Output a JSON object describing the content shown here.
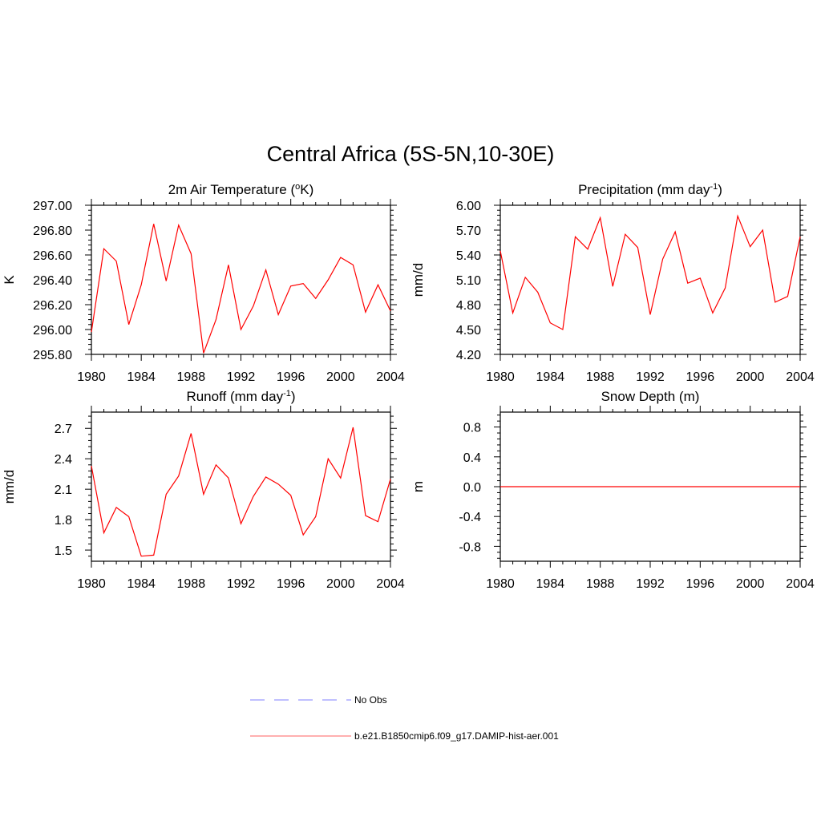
{
  "title": "Central Africa (5S-5N,10-30E)",
  "chart_data": [
    {
      "type": "line",
      "title": "2m Air Temperature (",
      "title_sup": "o",
      "title_tail": "K)",
      "ylabel": "K",
      "x": [
        1980,
        1981,
        1982,
        1983,
        1984,
        1985,
        1986,
        1987,
        1988,
        1989,
        1990,
        1991,
        1992,
        1993,
        1994,
        1995,
        1996,
        1997,
        1998,
        1999,
        2000,
        2001,
        2002,
        2003,
        2004
      ],
      "xticks": [
        1980,
        1984,
        1988,
        1992,
        1996,
        2000,
        2004
      ],
      "xlim": [
        1980,
        2004
      ],
      "ylim": [
        295.8,
        297.0
      ],
      "yticks": [
        295.8,
        296.0,
        296.2,
        296.4,
        296.6,
        296.8,
        297.0
      ],
      "ytick_labels": [
        "295.80",
        "296.00",
        "296.20",
        "296.40",
        "296.60",
        "296.80",
        "297.00"
      ],
      "yminor": 0.04,
      "series": [
        {
          "color": "#ff0000",
          "values": [
            295.98,
            296.65,
            296.55,
            296.04,
            296.36,
            296.85,
            296.39,
            296.84,
            296.61,
            295.81,
            296.08,
            296.52,
            296.0,
            296.19,
            296.48,
            296.12,
            296.35,
            296.37,
            296.25,
            296.4,
            296.58,
            296.52,
            296.14,
            296.36,
            296.15
          ]
        }
      ]
    },
    {
      "type": "line",
      "title": "Precipitation (mm day",
      "title_sup": "-1",
      "title_tail": ")",
      "ylabel": "mm/d",
      "x": [
        1980,
        1981,
        1982,
        1983,
        1984,
        1985,
        1986,
        1987,
        1988,
        1989,
        1990,
        1991,
        1992,
        1993,
        1994,
        1995,
        1996,
        1997,
        1998,
        1999,
        2000,
        2001,
        2002,
        2003,
        2004
      ],
      "xticks": [
        1980,
        1984,
        1988,
        1992,
        1996,
        2000,
        2004
      ],
      "xlim": [
        1980,
        2004
      ],
      "ylim": [
        4.2,
        6.0
      ],
      "yticks": [
        4.2,
        4.5,
        4.8,
        5.1,
        5.4,
        5.7,
        6.0
      ],
      "ytick_labels": [
        "4.20",
        "4.50",
        "4.80",
        "5.10",
        "5.40",
        "5.70",
        "6.00"
      ],
      "yminor": 0.06,
      "series": [
        {
          "color": "#ff0000",
          "values": [
            5.45,
            4.7,
            5.13,
            4.95,
            4.58,
            4.5,
            5.62,
            5.47,
            5.85,
            5.02,
            5.65,
            5.49,
            4.68,
            5.35,
            5.68,
            5.06,
            5.12,
            4.7,
            5.0,
            5.87,
            5.5,
            5.7,
            4.83,
            4.9,
            5.62
          ]
        }
      ]
    },
    {
      "type": "line",
      "title": "Runoff (mm day",
      "title_sup": "-1",
      "title_tail": ")",
      "ylabel": "mm/d",
      "x": [
        1980,
        1981,
        1982,
        1983,
        1984,
        1985,
        1986,
        1987,
        1988,
        1989,
        1990,
        1991,
        1992,
        1993,
        1994,
        1995,
        1996,
        1997,
        1998,
        1999,
        2000,
        2001,
        2002,
        2003,
        2004
      ],
      "xticks": [
        1980,
        1984,
        1988,
        1992,
        1996,
        2000,
        2004
      ],
      "xlim": [
        1980,
        2004
      ],
      "ylim": [
        1.39,
        2.86
      ],
      "yticks": [
        1.5,
        1.8,
        2.1,
        2.4,
        2.7
      ],
      "ytick_labels": [
        "1.5",
        "1.8",
        "2.1",
        "2.4",
        "2.7"
      ],
      "yminor": 0.06,
      "series": [
        {
          "color": "#ff0000",
          "values": [
            2.33,
            1.67,
            1.92,
            1.83,
            1.44,
            1.45,
            2.05,
            2.23,
            2.65,
            2.05,
            2.34,
            2.21,
            1.76,
            2.03,
            2.22,
            2.15,
            2.04,
            1.65,
            1.83,
            2.4,
            2.21,
            2.71,
            1.84,
            1.78,
            2.2
          ]
        }
      ]
    },
    {
      "type": "line",
      "title": "Snow Depth (m)",
      "title_sup": "",
      "title_tail": "",
      "ylabel": "m",
      "x": [
        1980,
        2004
      ],
      "xticks": [
        1980,
        1984,
        1988,
        1992,
        1996,
        2000,
        2004
      ],
      "xlim": [
        1980,
        2004
      ],
      "ylim": [
        -1.0,
        1.0
      ],
      "yticks": [
        -0.8,
        -0.4,
        0.0,
        0.4,
        0.8
      ],
      "ytick_labels": [
        "-0.8",
        "-0.4",
        "0.0",
        "0.4",
        "0.8"
      ],
      "yminor": 0.08,
      "series": [
        {
          "color": "#ff0000",
          "values": [
            0.0,
            0.0
          ]
        }
      ]
    }
  ],
  "legend": [
    {
      "label": "No Obs",
      "color": "#9999ff",
      "dash": true
    },
    {
      "label": "b.e21.B1850cmip6.f09_g17.DAMIP-hist-aer.001",
      "color": "#ff8080",
      "dash": false
    }
  ]
}
